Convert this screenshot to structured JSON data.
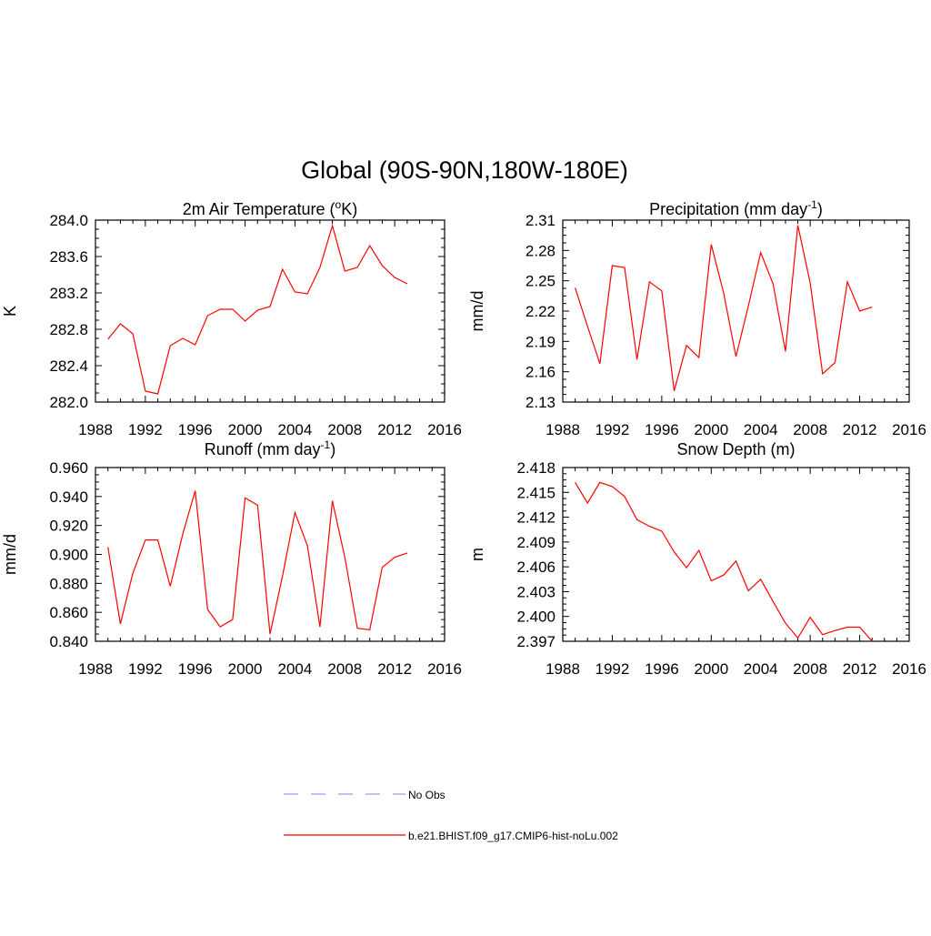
{
  "page": {
    "title": "Global (90S-90N,180W-180E)"
  },
  "chart_data": [
    {
      "type": "line",
      "title_main": "2m Air Temperature (",
      "title_sup": "o",
      "title_after": "K)",
      "ylabel": "K",
      "xlabel": "",
      "xlim": [
        1988,
        2016
      ],
      "xticks": [
        "1988",
        "1992",
        "1996",
        "2000",
        "2004",
        "2008",
        "2012",
        "2016"
      ],
      "ylim": [
        282.0,
        284.0
      ],
      "yticks": [
        "282.0",
        "282.4",
        "282.8",
        "283.2",
        "283.6",
        "284.0"
      ],
      "series": [
        {
          "color": "#ff0000",
          "x": [
            1989,
            1990,
            1991,
            1992,
            1993,
            1994,
            1995,
            1996,
            1997,
            1998,
            1999,
            2000,
            2001,
            2002,
            2003,
            2004,
            2005,
            2006,
            2007,
            2008,
            2009,
            2010,
            2011,
            2012,
            2013
          ],
          "y": [
            282.69,
            282.86,
            282.75,
            282.12,
            282.09,
            282.62,
            282.7,
            282.63,
            282.95,
            283.02,
            283.02,
            282.89,
            283.01,
            283.05,
            283.46,
            283.21,
            283.19,
            283.48,
            283.94,
            283.44,
            283.48,
            283.72,
            283.5,
            283.37,
            283.3
          ]
        }
      ]
    },
    {
      "type": "line",
      "title_main": "Precipitation (mm day",
      "title_sup": "-1",
      "title_after": ")",
      "ylabel": "mm/d",
      "xlabel": "",
      "xlim": [
        1988,
        2016
      ],
      "xticks": [
        "1988",
        "1992",
        "1996",
        "2000",
        "2004",
        "2008",
        "2012",
        "2016"
      ],
      "ylim": [
        2.13,
        2.31
      ],
      "yticks": [
        "2.13",
        "2.16",
        "2.19",
        "2.22",
        "2.25",
        "2.28",
        "2.31"
      ],
      "series": [
        {
          "color": "#ff0000",
          "x": [
            1989,
            1990,
            1991,
            1992,
            1993,
            1994,
            1995,
            1996,
            1997,
            1998,
            1999,
            2000,
            2001,
            2002,
            2003,
            2004,
            2005,
            2006,
            2007,
            2008,
            2009,
            2010,
            2011,
            2012,
            2013
          ],
          "y": [
            2.243,
            2.205,
            2.168,
            2.265,
            2.263,
            2.172,
            2.249,
            2.24,
            2.141,
            2.186,
            2.174,
            2.286,
            2.238,
            2.175,
            2.225,
            2.278,
            2.247,
            2.18,
            2.305,
            2.248,
            2.158,
            2.169,
            2.249,
            2.22,
            2.224
          ]
        }
      ]
    },
    {
      "type": "line",
      "title_main": "Runoff (mm day",
      "title_sup": "-1",
      "title_after": ")",
      "ylabel": "mm/d",
      "xlabel": "",
      "xlim": [
        1988,
        2016
      ],
      "xticks": [
        "1988",
        "1992",
        "1996",
        "2000",
        "2004",
        "2008",
        "2012",
        "2016"
      ],
      "ylim": [
        0.84,
        0.96
      ],
      "yticks": [
        "0.840",
        "0.860",
        "0.880",
        "0.900",
        "0.920",
        "0.940",
        "0.960"
      ],
      "series": [
        {
          "color": "#ff0000",
          "x": [
            1989,
            1990,
            1991,
            1992,
            1993,
            1994,
            1995,
            1996,
            1997,
            1998,
            1999,
            2000,
            2001,
            2002,
            2003,
            2004,
            2005,
            2006,
            2007,
            2008,
            2009,
            2010,
            2011,
            2012,
            2013
          ],
          "y": [
            0.905,
            0.852,
            0.887,
            0.91,
            0.91,
            0.878,
            0.914,
            0.944,
            0.862,
            0.85,
            0.855,
            0.939,
            0.934,
            0.845,
            0.885,
            0.929,
            0.906,
            0.85,
            0.937,
            0.898,
            0.849,
            0.848,
            0.891,
            0.898,
            0.901
          ]
        }
      ]
    },
    {
      "type": "line",
      "title_main": "Snow Depth (m)",
      "title_sup": "",
      "title_after": "",
      "ylabel": "m",
      "xlabel": "",
      "xlim": [
        1988,
        2016
      ],
      "xticks": [
        "1988",
        "1992",
        "1996",
        "2000",
        "2004",
        "2008",
        "2012",
        "2016"
      ],
      "ylim": [
        2.397,
        2.418
      ],
      "yticks": [
        "2.397",
        "2.400",
        "2.403",
        "2.406",
        "2.409",
        "2.412",
        "2.415",
        "2.418"
      ],
      "series": [
        {
          "color": "#ff0000",
          "x": [
            1989,
            1990,
            1991,
            1992,
            1993,
            1994,
            1995,
            1996,
            1997,
            1998,
            1999,
            2000,
            2001,
            2002,
            2003,
            2004,
            2005,
            2006,
            2007,
            2008,
            2009,
            2010,
            2011,
            2012,
            2013
          ],
          "y": [
            2.4162,
            2.4137,
            2.4162,
            2.4157,
            2.4145,
            2.4117,
            2.4109,
            2.4103,
            2.4078,
            2.4059,
            2.408,
            2.4043,
            2.405,
            2.4067,
            2.4031,
            2.4045,
            2.4018,
            2.3992,
            2.3974,
            2.3999,
            2.3978,
            2.3983,
            2.3987,
            2.3987,
            2.397
          ]
        }
      ]
    }
  ],
  "legend": {
    "items": [
      {
        "label": "No Obs",
        "color": "#9999ff",
        "style": "dashed"
      },
      {
        "label": "b.e21.BHIST.f09_g17.CMIP6-hist-noLu.002",
        "color": "#ff0000",
        "style": "solid"
      }
    ]
  }
}
